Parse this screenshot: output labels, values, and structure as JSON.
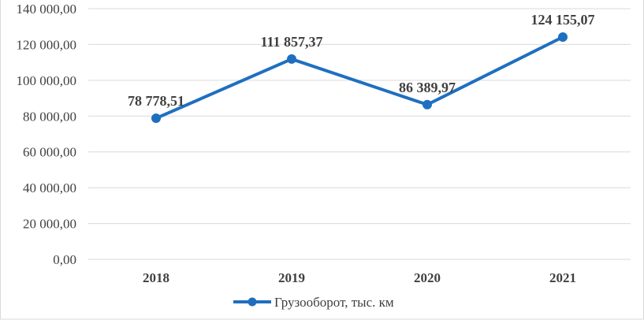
{
  "chart_data": {
    "type": "line",
    "categories": [
      "2018",
      "2019",
      "2020",
      "2021"
    ],
    "series": [
      {
        "name": "Грузооборот, тыс. км",
        "values": [
          78778.51,
          111857.37,
          86389.97,
          124155.07
        ],
        "labels": [
          "78 778,51",
          "111 857,37",
          "86 389,97",
          "124 155,07"
        ],
        "color": "#1f6fc0"
      }
    ],
    "ylim": [
      0,
      140000
    ],
    "yticks": [
      0,
      20000,
      40000,
      60000,
      80000,
      100000,
      120000,
      140000
    ],
    "ytick_labels": [
      "0,00",
      "20 000,00",
      "40 000,00",
      "60 000,00",
      "80 000,00",
      "100 000,00",
      "120 000,00",
      "140 000,00"
    ],
    "title": "",
    "xlabel": "",
    "ylabel": "",
    "grid": true,
    "legend": "bottom",
    "markers": true
  }
}
